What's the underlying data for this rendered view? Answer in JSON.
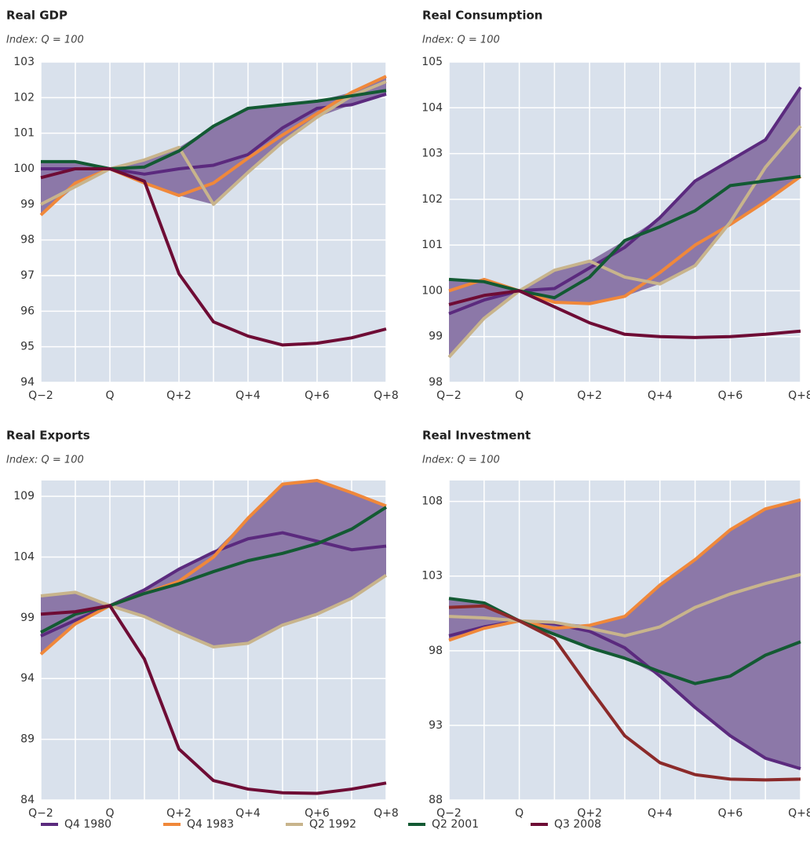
{
  "chart_data": [
    {
      "type": "line",
      "title": "Real GDP",
      "subtitle": "Index: Q = 100",
      "categories": [
        "Q−2",
        null,
        "Q",
        null,
        "Q+2",
        null,
        "Q+4",
        null,
        "Q+6",
        null,
        "Q+8"
      ],
      "ylim": [
        94,
        103
      ],
      "yticks": [
        94,
        95,
        96,
        97,
        98,
        99,
        100,
        101,
        102,
        103
      ],
      "grid": true,
      "band_color": "#8c78a8",
      "series": [
        {
          "name": "Q4 1980",
          "color": "#5b2a7e",
          "values": [
            100.0,
            100.0,
            100,
            99.85,
            100.0,
            100.1,
            100.4,
            101.15,
            101.7,
            101.8,
            102.1
          ]
        },
        {
          "name": "Q4 1983",
          "color": "#f0883a",
          "values": [
            98.7,
            99.6,
            100,
            99.6,
            99.25,
            99.6,
            100.3,
            100.95,
            101.55,
            102.15,
            102.6
          ]
        },
        {
          "name": "Q2 1992",
          "color": "#c8b48c",
          "values": [
            99.0,
            99.5,
            100,
            100.25,
            100.6,
            99.0,
            99.9,
            100.75,
            101.45,
            102.05,
            102.45
          ]
        },
        {
          "name": "Q2 2001",
          "color": "#135a33",
          "values": [
            100.2,
            100.2,
            100,
            100.05,
            100.5,
            101.2,
            101.7,
            101.8,
            101.9,
            102.05,
            102.2
          ]
        },
        {
          "name": "Q3 2008",
          "color": "#6e0c35",
          "values": [
            99.75,
            100.0,
            100,
            99.65,
            97.05,
            95.7,
            95.3,
            95.05,
            95.1,
            95.25,
            95.5
          ]
        }
      ]
    },
    {
      "type": "line",
      "title": "Real Consumption",
      "subtitle": "Index: Q = 100",
      "categories": [
        "Q−2",
        null,
        "Q",
        null,
        "Q+2",
        null,
        "Q+4",
        null,
        "Q+6",
        null,
        "Q+8"
      ],
      "ylim": [
        98,
        105
      ],
      "yticks": [
        98,
        99,
        100,
        101,
        102,
        103,
        104,
        105
      ],
      "grid": true,
      "band_color": "#8c78a8",
      "series": [
        {
          "name": "Q4 1980",
          "color": "#5b2a7e",
          "values": [
            99.5,
            99.8,
            100,
            100.05,
            100.5,
            100.95,
            101.6,
            102.4,
            102.85,
            103.3,
            104.45
          ]
        },
        {
          "name": "Q4 1983",
          "color": "#f0883a",
          "values": [
            100.0,
            100.25,
            100,
            99.75,
            99.72,
            99.88,
            100.4,
            101.0,
            101.45,
            101.95,
            102.5
          ]
        },
        {
          "name": "Q2 1992",
          "color": "#c8b48c",
          "values": [
            98.55,
            99.4,
            100,
            100.45,
            100.65,
            100.3,
            100.15,
            100.55,
            101.5,
            102.7,
            103.6
          ]
        },
        {
          "name": "Q2 2001",
          "color": "#135a33",
          "values": [
            100.25,
            100.2,
            100,
            99.85,
            100.3,
            101.1,
            101.4,
            101.75,
            102.3,
            102.4,
            102.5
          ]
        },
        {
          "name": "Q3 2008",
          "color": "#6e0c35",
          "values": [
            99.7,
            99.9,
            100,
            99.65,
            99.3,
            99.05,
            99.0,
            98.98,
            99.0,
            99.05,
            99.12
          ]
        }
      ]
    },
    {
      "type": "line",
      "title": "Real Exports",
      "subtitle": "Index: Q = 100",
      "categories": [
        "Q−2",
        null,
        "Q",
        null,
        "Q+2",
        null,
        "Q+4",
        null,
        "Q+6",
        null,
        "Q+8"
      ],
      "ylim": [
        84,
        110.3
      ],
      "yticks": [
        84,
        89,
        94,
        99,
        104,
        109
      ],
      "grid": true,
      "band_color": "#8c78a8",
      "series": [
        {
          "name": "Q4 1980",
          "color": "#5b2a7e",
          "values": [
            97.5,
            98.8,
            100,
            101.3,
            103.0,
            104.4,
            105.5,
            106.0,
            105.3,
            104.6,
            104.9
          ]
        },
        {
          "name": "Q4 1983",
          "color": "#f0883a",
          "values": [
            96.0,
            98.5,
            100,
            101.0,
            102.0,
            104.0,
            107.2,
            110.0,
            110.3,
            109.3,
            108.2
          ]
        },
        {
          "name": "Q2 1992",
          "color": "#c8b48c",
          "values": [
            100.8,
            101.1,
            100,
            99.1,
            97.8,
            96.6,
            96.9,
            98.4,
            99.3,
            100.6,
            102.5
          ]
        },
        {
          "name": "Q2 2001",
          "color": "#135a33",
          "values": [
            97.8,
            99.3,
            100,
            101.0,
            101.8,
            102.8,
            103.7,
            104.3,
            105.1,
            106.3,
            108.1
          ]
        },
        {
          "name": "Q3 2008",
          "color": "#6e0c35",
          "values": [
            99.3,
            99.5,
            100,
            95.6,
            88.2,
            85.6,
            84.9,
            84.6,
            84.55,
            84.9,
            85.4
          ]
        }
      ]
    },
    {
      "type": "line",
      "title": "Real Investment",
      "subtitle": "Index: Q = 100",
      "categories": [
        "Q−2",
        null,
        "Q",
        null,
        "Q+2",
        null,
        "Q+4",
        null,
        "Q+6",
        null,
        "Q+8"
      ],
      "ylim": [
        88,
        109.4
      ],
      "yticks": [
        88,
        93,
        98,
        103,
        108
      ],
      "grid": true,
      "band_color": "#8c78a8",
      "series": [
        {
          "name": "Q4 1980",
          "color": "#5b2a7e",
          "values": [
            99.0,
            99.6,
            100,
            99.8,
            99.3,
            98.2,
            96.3,
            94.2,
            92.3,
            90.8,
            90.1
          ]
        },
        {
          "name": "Q4 1983",
          "color": "#f0883a",
          "values": [
            98.7,
            99.5,
            100,
            99.5,
            99.7,
            100.3,
            102.4,
            104.1,
            106.1,
            107.5,
            108.1
          ]
        },
        {
          "name": "Q2 1992",
          "color": "#c8b48c",
          "values": [
            100.3,
            100.2,
            100,
            99.9,
            99.5,
            99.0,
            99.6,
            100.9,
            101.8,
            102.5,
            103.1
          ]
        },
        {
          "name": "Q2 2001",
          "color": "#135a33",
          "values": [
            101.5,
            101.2,
            100,
            99.1,
            98.2,
            97.5,
            96.6,
            95.8,
            96.3,
            97.7,
            98.6
          ]
        },
        {
          "name": "Q3 2008",
          "color": "#8b2a2a",
          "values": [
            100.9,
            101.0,
            100,
            98.8,
            95.5,
            92.3,
            90.5,
            89.7,
            89.4,
            89.35,
            89.4
          ]
        }
      ]
    }
  ]
}
